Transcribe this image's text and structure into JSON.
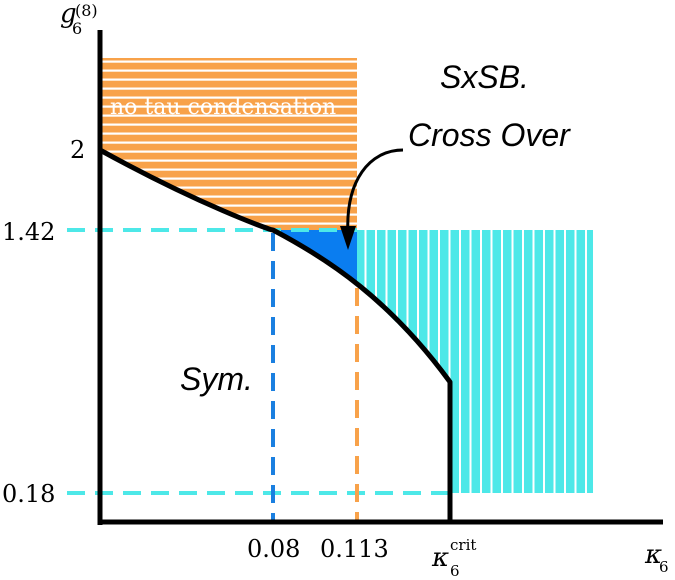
{
  "diagram": {
    "axes": {
      "y_label_base": "g",
      "y_label_sub": "6",
      "y_label_sup": "(8)",
      "x_label_base": "κ",
      "x_label_sub": "6"
    },
    "y_ticks": [
      "2",
      "1.42",
      "0.18"
    ],
    "x_ticks": {
      "a": "0.08",
      "b": "0.113",
      "crit_base": "κ",
      "crit_sub": "6",
      "crit_sup": "crit"
    },
    "regions": {
      "no_tau": "no tau condensation",
      "sxsb": "SxSB.",
      "cross_over": "Cross Over",
      "sym": "Sym."
    },
    "colors": {
      "orange": "#f8a24a",
      "cyan": "#4de8e8",
      "blue": "#0a7df0",
      "dash_blue": "#1a7fe0",
      "dash_orange": "#f8a24a",
      "line": "#000000"
    }
  }
}
